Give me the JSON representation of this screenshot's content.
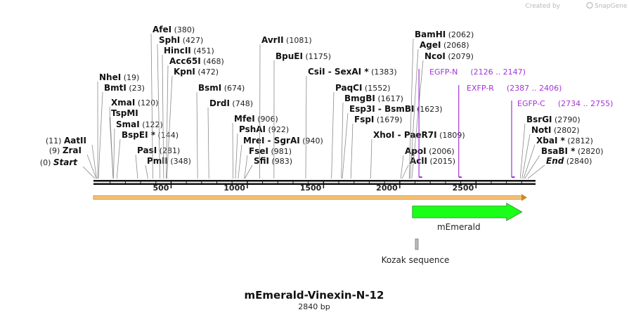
{
  "watermark": {
    "created_by": "Created by",
    "brand": "SnapGene"
  },
  "plasmid": {
    "name": "mEmerald-Vinexin-N-12",
    "length_label": "2840 bp",
    "length": 2840
  },
  "ruler": {
    "ticks": [
      500,
      1000,
      1500,
      2000,
      2500
    ],
    "labels": [
      "500",
      "1000",
      "1500",
      "2000",
      "2500"
    ]
  },
  "sites": [
    {
      "name": "Start",
      "star": "",
      "pos": 0,
      "pos_label": "(0)",
      "italic": true,
      "side": "left"
    },
    {
      "name": "ZraI",
      "star": "",
      "pos": 9,
      "pos_label": "(9)",
      "side": "left"
    },
    {
      "name": "AatII",
      "star": "",
      "pos": 11,
      "pos_label": "(11)",
      "side": "left"
    },
    {
      "name": "NheI",
      "star": "",
      "pos": 19,
      "pos_label": "(19)",
      "side": "right"
    },
    {
      "name": "BmtI",
      "star": "",
      "pos": 23,
      "pos_label": "(23)",
      "side": "right"
    },
    {
      "name": "XmaI",
      "star": "",
      "pos": 120,
      "pos_label": "(120)",
      "side": "right"
    },
    {
      "name": "TspMI",
      "star": "",
      "pos": 120,
      "pos_label": "",
      "side": "right"
    },
    {
      "name": "SmaI",
      "star": "",
      "pos": 122,
      "pos_label": "(122)",
      "side": "right"
    },
    {
      "name": "BspEI",
      "star": " *",
      "pos": 144,
      "pos_label": "(144)",
      "side": "right"
    },
    {
      "name": "PasI",
      "star": "",
      "pos": 281,
      "pos_label": "(281)",
      "side": "right"
    },
    {
      "name": "PmlI",
      "star": "",
      "pos": 348,
      "pos_label": "(348)",
      "side": "right"
    },
    {
      "name": "AfeI",
      "star": "",
      "pos": 380,
      "pos_label": "(380)",
      "side": "right"
    },
    {
      "name": "SphI",
      "star": "",
      "pos": 427,
      "pos_label": "(427)",
      "side": "right"
    },
    {
      "name": "HincII",
      "star": "",
      "pos": 451,
      "pos_label": "(451)",
      "side": "right"
    },
    {
      "name": "Acc65I",
      "star": "",
      "pos": 468,
      "pos_label": "(468)",
      "side": "right"
    },
    {
      "name": "KpnI",
      "star": "",
      "pos": 472,
      "pos_label": "(472)",
      "side": "right"
    },
    {
      "name": "BsmI",
      "star": "",
      "pos": 674,
      "pos_label": "(674)",
      "side": "right"
    },
    {
      "name": "DrdI",
      "star": "",
      "pos": 748,
      "pos_label": "(748)",
      "side": "right"
    },
    {
      "name": "MfeI",
      "star": "",
      "pos": 906,
      "pos_label": "(906)",
      "side": "right"
    },
    {
      "name": "PshAI",
      "star": "",
      "pos": 922,
      "pos_label": "(922)",
      "side": "right"
    },
    {
      "name": "MreI - SgrAI",
      "star": "",
      "pos": 940,
      "pos_label": "(940)",
      "side": "right"
    },
    {
      "name": "FseI",
      "star": "",
      "pos": 981,
      "pos_label": "(981)",
      "side": "right"
    },
    {
      "name": "SfiI",
      "star": "",
      "pos": 983,
      "pos_label": "(983)",
      "side": "right"
    },
    {
      "name": "AvrII",
      "star": "",
      "pos": 1081,
      "pos_label": "(1081)",
      "side": "right"
    },
    {
      "name": "BpuEI",
      "star": "",
      "pos": 1175,
      "pos_label": "(1175)",
      "side": "right"
    },
    {
      "name": "CsiI - SexAI",
      "star": " *",
      "pos": 1383,
      "pos_label": "(1383)",
      "side": "right"
    },
    {
      "name": "PaqCI",
      "star": "",
      "pos": 1552,
      "pos_label": "(1552)",
      "side": "right"
    },
    {
      "name": "BmgBI",
      "star": "",
      "pos": 1617,
      "pos_label": "(1617)",
      "side": "right"
    },
    {
      "name": "Esp3I - BsmBI",
      "star": "",
      "pos": 1623,
      "pos_label": "(1623)",
      "side": "right"
    },
    {
      "name": "FspI",
      "star": "",
      "pos": 1679,
      "pos_label": "(1679)",
      "side": "right"
    },
    {
      "name": "XhoI - PaeR7I",
      "star": "",
      "pos": 1809,
      "pos_label": "(1809)",
      "side": "right"
    },
    {
      "name": "ApoI",
      "star": "",
      "pos": 2006,
      "pos_label": "(2006)",
      "side": "right"
    },
    {
      "name": "AclI",
      "star": "",
      "pos": 2015,
      "pos_label": "(2015)",
      "side": "right"
    },
    {
      "name": "BamHI",
      "star": "",
      "pos": 2062,
      "pos_label": "(2062)",
      "side": "right"
    },
    {
      "name": "AgeI",
      "star": "",
      "pos": 2068,
      "pos_label": "(2068)",
      "side": "right"
    },
    {
      "name": "NcoI",
      "star": "",
      "pos": 2079,
      "pos_label": "(2079)",
      "side": "right"
    },
    {
      "name": "BsrGI",
      "star": "",
      "pos": 2790,
      "pos_label": "(2790)",
      "side": "right"
    },
    {
      "name": "NotI",
      "star": "",
      "pos": 2802,
      "pos_label": "(2802)",
      "side": "right"
    },
    {
      "name": "XbaI",
      "star": " *",
      "pos": 2812,
      "pos_label": "(2812)",
      "side": "right"
    },
    {
      "name": "BsaBI",
      "star": " *",
      "pos": 2820,
      "pos_label": "(2820)",
      "side": "right"
    },
    {
      "name": "End",
      "star": "",
      "pos": 2840,
      "pos_label": "(2840)",
      "italic": true,
      "side": "right"
    }
  ],
  "primers": [
    {
      "name": "EGFP-N",
      "range": "(2126 .. 2147)",
      "start": 2126,
      "end": 2147
    },
    {
      "name": "EXFP-R",
      "range": "(2387 .. 2406)",
      "start": 2387,
      "end": 2406
    },
    {
      "name": "EGFP-C",
      "range": "(2734 .. 2755)",
      "start": 2734,
      "end": 2755
    }
  ],
  "features": [
    {
      "name": "mEmerald",
      "start": 2083,
      "end": 2802,
      "color": "#1aff1a",
      "type": "arrow"
    },
    {
      "name": "Kozak sequence",
      "start": 2073,
      "end": 2083,
      "color": "#bbbbbb",
      "type": "box"
    }
  ],
  "colors": {
    "primer": "#a334d6",
    "backbone_arrow": "#f0b040",
    "feature_green": "#1aff1a"
  }
}
